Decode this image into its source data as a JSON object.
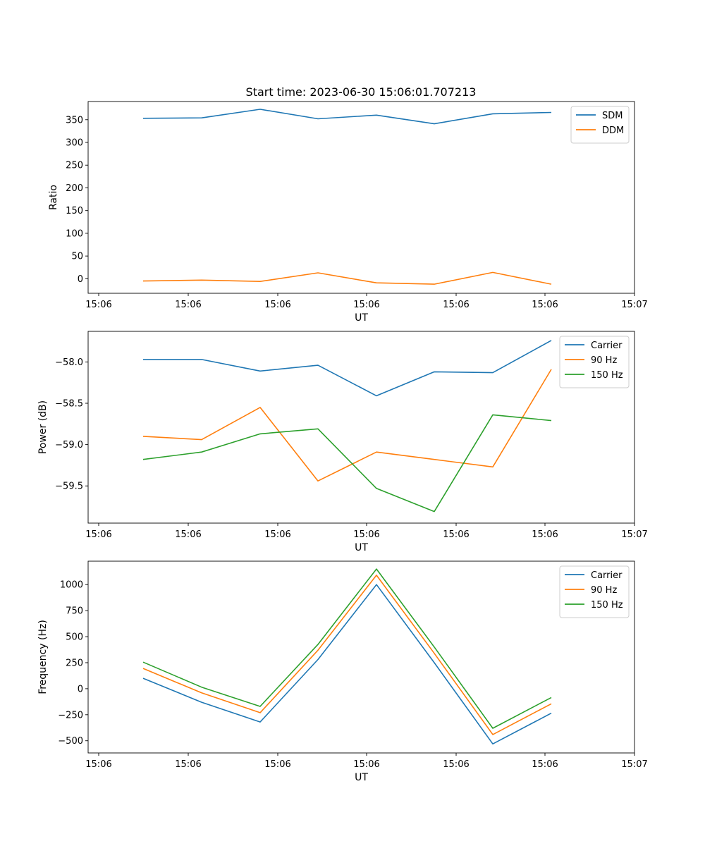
{
  "title": "Start time: 2023-06-30 15:06:01.707213",
  "chart_data": [
    {
      "type": "line",
      "title": "Start time: 2023-06-30 15:06:01.707213",
      "xlabel": "UT",
      "ylabel": "Ratio",
      "x_tick_labels": [
        "15:06",
        "15:06",
        "15:06",
        "15:06",
        "15:06",
        "15:06",
        "15:07"
      ],
      "x_points": [
        0,
        1,
        2,
        3,
        4,
        5,
        6,
        7
      ],
      "ylim": [
        -32,
        390
      ],
      "y_ticks": [
        0,
        50,
        100,
        150,
        200,
        250,
        300,
        350
      ],
      "grid": false,
      "legend_position": "top-right",
      "series": [
        {
          "name": "SDM",
          "color": "#1f77b4",
          "values": [
            353,
            354,
            373,
            352,
            360,
            341,
            363,
            366
          ]
        },
        {
          "name": "DDM",
          "color": "#ff7f0e",
          "values": [
            -5,
            -3,
            -6,
            13,
            -9,
            -12,
            14,
            -12
          ]
        }
      ]
    },
    {
      "type": "line",
      "xlabel": "UT",
      "ylabel": "Power (dB)",
      "x_tick_labels": [
        "15:06",
        "15:06",
        "15:06",
        "15:06",
        "15:06",
        "15:06",
        "15:07"
      ],
      "x_points": [
        0,
        1,
        2,
        3,
        4,
        5,
        6,
        7
      ],
      "ylim": [
        -59.95,
        -57.63
      ],
      "y_ticks": [
        -59.5,
        -59.0,
        -58.5,
        -58.0
      ],
      "y_tick_labels": [
        "−59.5",
        "−59.0",
        "−58.5",
        "−58.0"
      ],
      "grid": false,
      "legend_position": "top-right",
      "series": [
        {
          "name": "Carrier",
          "color": "#1f77b4",
          "values": [
            -57.97,
            -57.97,
            -58.11,
            -58.04,
            -58.41,
            -58.12,
            -58.13,
            -57.74
          ]
        },
        {
          "name": "90 Hz",
          "color": "#ff7f0e",
          "values": [
            -58.9,
            -58.94,
            -58.55,
            -59.44,
            -59.09,
            -59.18,
            -59.27,
            -58.09
          ]
        },
        {
          "name": "150 Hz",
          "color": "#2ca02c",
          "values": [
            -59.18,
            -59.09,
            -58.87,
            -58.81,
            -59.53,
            -59.81,
            -58.64,
            -58.71
          ]
        }
      ]
    },
    {
      "type": "line",
      "xlabel": "UT",
      "ylabel": "Frequency (Hz)",
      "x_tick_labels": [
        "15:06",
        "15:06",
        "15:06",
        "15:06",
        "15:06",
        "15:06",
        "15:07"
      ],
      "x_points": [
        0,
        1,
        2,
        3,
        4,
        5,
        6,
        7
      ],
      "ylim": [
        -617,
        1225
      ],
      "y_ticks": [
        -500,
        -250,
        0,
        250,
        500,
        750,
        1000
      ],
      "y_tick_labels": [
        "−500",
        "−250",
        "0",
        "250",
        "500",
        "750",
        "1000"
      ],
      "grid": false,
      "legend_position": "top-right",
      "series": [
        {
          "name": "Carrier",
          "color": "#1f77b4",
          "values": [
            100,
            -130,
            -320,
            280,
            1000,
            250,
            -530,
            -235
          ]
        },
        {
          "name": "90 Hz",
          "color": "#ff7f0e",
          "values": [
            195,
            -40,
            -230,
            370,
            1090,
            340,
            -440,
            -145
          ]
        },
        {
          "name": "150 Hz",
          "color": "#2ca02c",
          "values": [
            255,
            15,
            -170,
            425,
            1150,
            400,
            -380,
            -85
          ]
        }
      ]
    }
  ]
}
